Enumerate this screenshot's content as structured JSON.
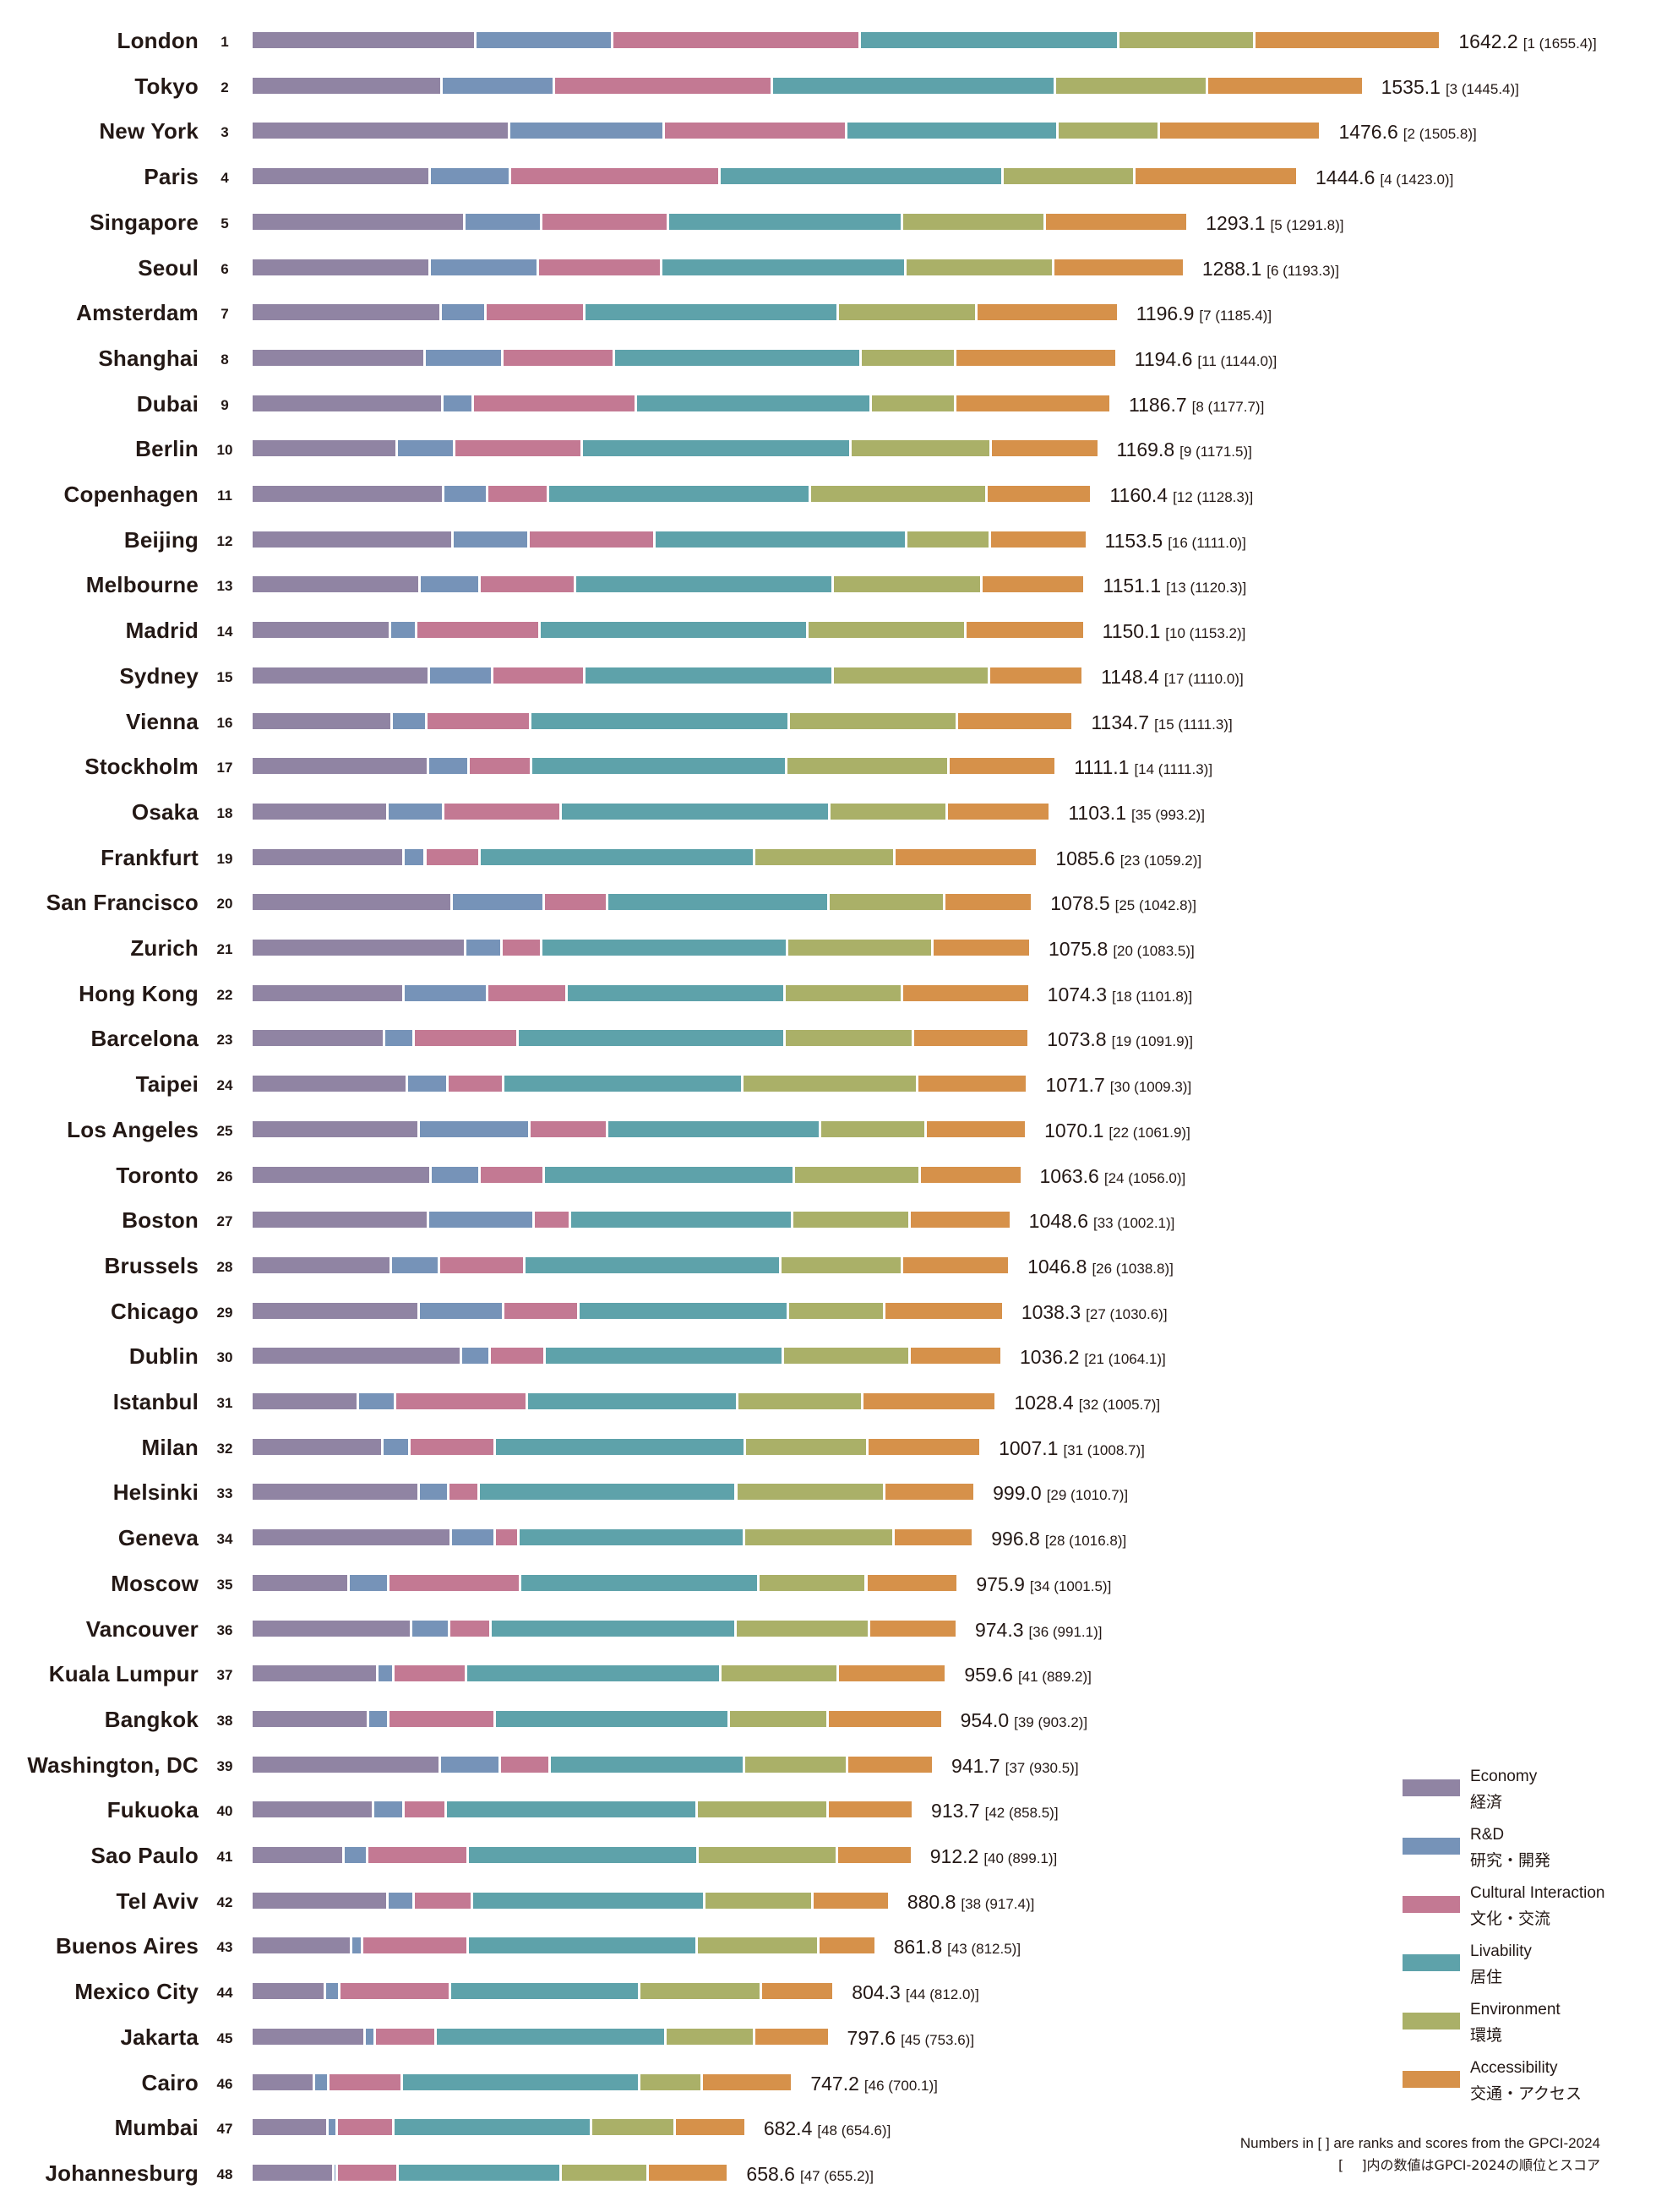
{
  "chart_data": {
    "type": "bar",
    "orientation": "horizontal",
    "stacked": true,
    "title": "",
    "xlabel": "",
    "ylabel": "",
    "grid": false,
    "legend_position": "bottom-right",
    "series_names": [
      "Economy",
      "R&D",
      "Cultural Interaction",
      "Livability",
      "Environment",
      "Accessibility"
    ],
    "legend": [
      {
        "name": "Economy",
        "name_ja": "経済",
        "color": "#9084a3"
      },
      {
        "name": "R&D",
        "name_ja": "研究・開発",
        "color": "#7693b8"
      },
      {
        "name": "Cultural Interaction",
        "name_ja": "文化・交流",
        "color": "#c37993"
      },
      {
        "name": "Livability",
        "name_ja": "居住",
        "color": "#5ea2aa"
      },
      {
        "name": "Environment",
        "name_ja": "環境",
        "color": "#aab068"
      },
      {
        "name": "Accessibility",
        "name_ja": "交通・アクセス",
        "color": "#d6914a"
      }
    ],
    "rows": [
      {
        "rank": "1",
        "city": "London",
        "total": "1642.2",
        "prev": "[1 (1655.4)]",
        "values": [
          309.4,
          188.7,
          342.4,
          356.1,
          188.7,
          256.8
        ]
      },
      {
        "rank": "2",
        "city": "Tokyo",
        "total": "1535.1",
        "prev": "[3 (1445.4)]",
        "values": [
          262.3,
          155.5,
          301.2,
          390.6,
          209.9,
          215.7
        ]
      },
      {
        "rank": "3",
        "city": "New York",
        "total": "1476.6",
        "prev": "[2 (1505.8)]",
        "values": [
          355.6,
          213.7,
          252.6,
          291.4,
          139.9,
          223.4
        ]
      },
      {
        "rank": "4",
        "city": "Paris",
        "total": "1444.6",
        "prev": "[4 (1423.0)]",
        "values": [
          246.6,
          110.7,
          289.3,
          390.3,
          182.5,
          225.2
        ]
      },
      {
        "rank": "5",
        "city": "Singapore",
        "total": "1293.1",
        "prev": "[5 (1291.8)]",
        "values": [
          294.2,
          106.5,
          174.2,
          323.3,
          197.4,
          197.5
        ]
      },
      {
        "rank": "6",
        "city": "Seoul",
        "total": "1288.1",
        "prev": "[6 (1193.3)]",
        "values": [
          246.0,
          149.1,
          170.5,
          337.0,
          205.3,
          180.2
        ]
      },
      {
        "rank": "7",
        "city": "Amsterdam",
        "total": "1196.9",
        "prev": "[7 (1185.4)]",
        "values": [
          261.0,
          61.9,
          137.3,
          350.0,
          191.4,
          195.3
        ]
      },
      {
        "rank": "8",
        "city": "Shanghai",
        "total": "1194.6",
        "prev": "[11 (1144.0)]",
        "values": [
          239.7,
          106.3,
          154.6,
          340.2,
          131.4,
          222.4
        ]
      },
      {
        "rank": "9",
        "city": "Dubai",
        "total": "1186.7",
        "prev": "[8 (1177.7)]",
        "values": [
          263.3,
          42.6,
          224.6,
          325.2,
          116.2,
          214.8
        ]
      },
      {
        "rank": "10",
        "city": "Berlin",
        "total": "1169.8",
        "prev": "[9 (1171.5)]",
        "values": [
          201.1,
          79.3,
          176.0,
          371.3,
          193.4,
          148.7
        ]
      },
      {
        "rank": "11",
        "city": "Copenhagen",
        "total": "1160.4",
        "prev": "[12 (1128.3)]",
        "values": [
          265.0,
          60.0,
          85.1,
          361.6,
          243.7,
          145.0
        ]
      },
      {
        "rank": "12",
        "city": "Beijing",
        "total": "1153.5",
        "prev": "[16 (1111.0)]",
        "values": [
          278.2,
          104.3,
          173.9,
          347.8,
          115.9,
          133.4
        ]
      },
      {
        "rank": "13",
        "city": "Melbourne",
        "total": "1151.1",
        "prev": "[13 (1120.3)]",
        "values": [
          232.2,
          83.2,
          131.6,
          356.0,
          205.1,
          143.0
        ]
      },
      {
        "rank": "14",
        "city": "Madrid",
        "total": "1150.1",
        "prev": "[10 (1153.2)]",
        "values": [
          191.4,
          36.7,
          170.1,
          369.2,
          218.4,
          164.3
        ]
      },
      {
        "rank": "15",
        "city": "Sydney",
        "total": "1148.4",
        "prev": "[17 (1110.0)]",
        "values": [
          245.5,
          87.0,
          127.6,
          342.2,
          216.5,
          129.6
        ]
      },
      {
        "rank": "16",
        "city": "Vienna",
        "total": "1134.7",
        "prev": "[15 (1111.3)]",
        "values": [
          193.3,
          48.3,
          143.1,
          357.6,
          232.0,
          160.4
        ]
      },
      {
        "rank": "17",
        "city": "Stockholm",
        "total": "1111.1",
        "prev": "[14 (1111.3)]",
        "values": [
          243.5,
          56.0,
          87.0,
          351.7,
          224.1,
          148.8
        ]
      },
      {
        "rank": "18",
        "city": "Osaka",
        "total": "1103.1",
        "prev": "[35 (993.2)]",
        "values": [
          187.4,
          77.3,
          162.3,
          370.9,
          162.3,
          142.9
        ]
      },
      {
        "rank": "19",
        "city": "Frankfurt",
        "total": "1085.6",
        "prev": "[23 (1059.2)]",
        "values": [
          209.7,
          30.1,
          75.2,
          379.0,
          194.0,
          197.6
        ]
      },
      {
        "rank": "20",
        "city": "San Francisco",
        "total": "1078.5",
        "prev": "[25 (1042.8)]",
        "values": [
          276.4,
          127.6,
          87.0,
          305.4,
          160.4,
          121.7
        ]
      },
      {
        "rank": "21",
        "city": "Zurich",
        "total": "1075.8",
        "prev": "[20 (1083.5)]",
        "values": [
          295.5,
          50.2,
          54.1,
          339.9,
          200.9,
          135.2
        ]
      },
      {
        "rank": "22",
        "city": "Hong Kong",
        "total": "1074.3",
        "prev": "[18 (1101.8)]",
        "values": [
          210.2,
          115.7,
          109.9,
          300.9,
          162.0,
          175.6
        ]
      },
      {
        "rank": "23",
        "city": "Barcelona",
        "total": "1073.8",
        "prev": "[19 (1091.9)]",
        "values": [
          183.5,
          40.6,
          142.9,
          368.9,
          177.7,
          160.2
        ]
      },
      {
        "rank": "24",
        "city": "Taipei",
        "total": "1071.7",
        "prev": "[30 (1009.3)]",
        "values": [
          214.3,
          56.0,
          77.2,
          330.2,
          241.4,
          152.6
        ]
      },
      {
        "rank": "25",
        "city": "Los Angeles",
        "total": "1070.1",
        "prev": "[22 (1061.9)]",
        "values": [
          231.4,
          152.3,
          108.0,
          293.1,
          146.5,
          138.8
        ]
      },
      {
        "rank": "26",
        "city": "Toronto",
        "total": "1063.6",
        "prev": "[24 (1056.0)]",
        "values": [
          247.1,
          67.6,
          88.8,
          345.5,
          173.7,
          140.9
        ]
      },
      {
        "rank": "27",
        "city": "Boston",
        "total": "1048.6",
        "prev": "[33 (1002.1)]",
        "values": [
          243.3,
          146.8,
          50.2,
          307.0,
          162.2,
          139.1
        ]
      },
      {
        "rank": "28",
        "city": "Brussels",
        "total": "1046.8",
        "prev": "[26 (1038.8)]",
        "values": [
          193.1,
          65.7,
          117.8,
          353.5,
          168.0,
          148.7
        ]
      },
      {
        "rank": "29",
        "city": "Chicago",
        "total": "1038.3",
        "prev": "[27 (1030.6)]",
        "values": [
          231.6,
          115.8,
          104.2,
          289.5,
          133.2,
          164.0
        ]
      },
      {
        "rank": "30",
        "city": "Dublin",
        "total": "1036.2",
        "prev": "[21 (1064.1)]",
        "values": [
          288.9,
          40.4,
          75.1,
          329.3,
          175.3,
          127.2
        ]
      },
      {
        "rank": "31",
        "city": "Istanbul",
        "total": "1028.4",
        "prev": "[32 (1005.7)]",
        "values": [
          146.6,
          52.1,
          181.4,
          291.3,
          171.7,
          185.3
        ]
      },
      {
        "rank": "32",
        "city": "Milan",
        "total": "1007.1",
        "prev": "[31 (1008.7)]",
        "values": [
          181.4,
          36.7,
          117.7,
          345.3,
          169.8,
          156.2
        ]
      },
      {
        "rank": "33",
        "city": "Helsinki",
        "total": "999.0",
        "prev": "[29 (1010.7)]",
        "values": [
          231.4,
          40.5,
          42.4,
          354.9,
          204.4,
          125.4
        ]
      },
      {
        "rank": "34",
        "city": "Geneva",
        "total": "996.8",
        "prev": "[28 (1016.8)]",
        "values": [
          275.7,
          59.8,
          32.8,
          312.4,
          206.3,
          109.8
        ]
      },
      {
        "rank": "35",
        "city": "Moscow",
        "total": "975.9",
        "prev": "[34 (1001.5)]",
        "values": [
          134.7,
          53.9,
          182.9,
          329.2,
          148.2,
          127.0
        ]
      },
      {
        "rank": "36",
        "city": "Vancouver",
        "total": "974.3",
        "prev": "[36 (991.1)]",
        "values": [
          221.0,
          51.9,
          57.7,
          338.2,
          184.5,
          121.0
        ]
      },
      {
        "rank": "37",
        "city": "Kuala Lumpur",
        "total": "959.6",
        "prev": "[41 (889.2)]",
        "values": [
          173.4,
          23.1,
          100.2,
          350.7,
          161.9,
          150.3
        ]
      },
      {
        "rank": "38",
        "city": "Bangkok",
        "total": "954.0",
        "prev": "[39 (903.2)]",
        "values": [
          161.6,
          26.9,
          148.1,
          323.1,
          136.6,
          157.7
        ]
      },
      {
        "rank": "39",
        "city": "Washington, DC",
        "total": "941.7",
        "prev": "[37 (930.5)]",
        "values": [
          260.0,
          82.8,
          69.3,
          267.7,
          142.5,
          119.4
        ]
      },
      {
        "rank": "40",
        "city": "Fukuoka",
        "total": "913.7",
        "prev": "[42 (858.5)]",
        "values": [
          167.7,
          42.4,
          57.8,
          347.0,
          181.2,
          117.6
        ]
      },
      {
        "rank": "41",
        "city": "Sao Paulo",
        "total": "912.2",
        "prev": "[40 (899.1)]",
        "values": [
          127.0,
          32.7,
          138.6,
          317.5,
          192.5,
          103.9
        ]
      },
      {
        "rank": "42",
        "city": "Tel Aviv",
        "total": "880.8",
        "prev": "[38 (917.4)]",
        "values": [
          188.3,
          35.3,
          80.4,
          321.7,
          149.1,
          106.0
        ]
      },
      {
        "rank": "43",
        "city": "Buenos Aires",
        "total": "861.8",
        "prev": "[43 (812.5)]",
        "values": [
          137.4,
          15.7,
          145.3,
          316.1,
          168.8,
          78.5
        ]
      },
      {
        "rank": "44",
        "city": "Mexico City",
        "total": "804.3",
        "prev": "[44 (812.0)]",
        "values": [
          102.0,
          19.6,
          153.0,
          260.9,
          168.7,
          100.1
        ]
      },
      {
        "rank": "45",
        "city": "Jakarta",
        "total": "797.6",
        "prev": "[45 (753.6)]",
        "values": [
          156.8,
          13.7,
          84.3,
          317.5,
          121.5,
          103.8
        ]
      },
      {
        "rank": "46",
        "city": "Cairo",
        "total": "747.2",
        "prev": "[46 (700.1)]",
        "values": [
          86.3,
          19.6,
          102.0,
          327.5,
          86.3,
          125.5
        ]
      },
      {
        "rank": "47",
        "city": "Mumbai",
        "total": "682.4",
        "prev": "[48 (654.6)]",
        "values": [
          105.6,
          11.7,
          78.2,
          273.7,
          115.4,
          97.8
        ]
      },
      {
        "rank": "48",
        "city": "Johannesburg",
        "total": "658.6",
        "prev": "[47 (655.2)]",
        "values": [
          113.7,
          3.9,
          84.3,
          225.4,
          119.6,
          111.7
        ]
      }
    ],
    "footnote_en": "Numbers in [ ] are ranks and scores from the GPCI-2024",
    "footnote_ja": "[　 ]内の数値はGPCI-2024の順位とスコア"
  }
}
